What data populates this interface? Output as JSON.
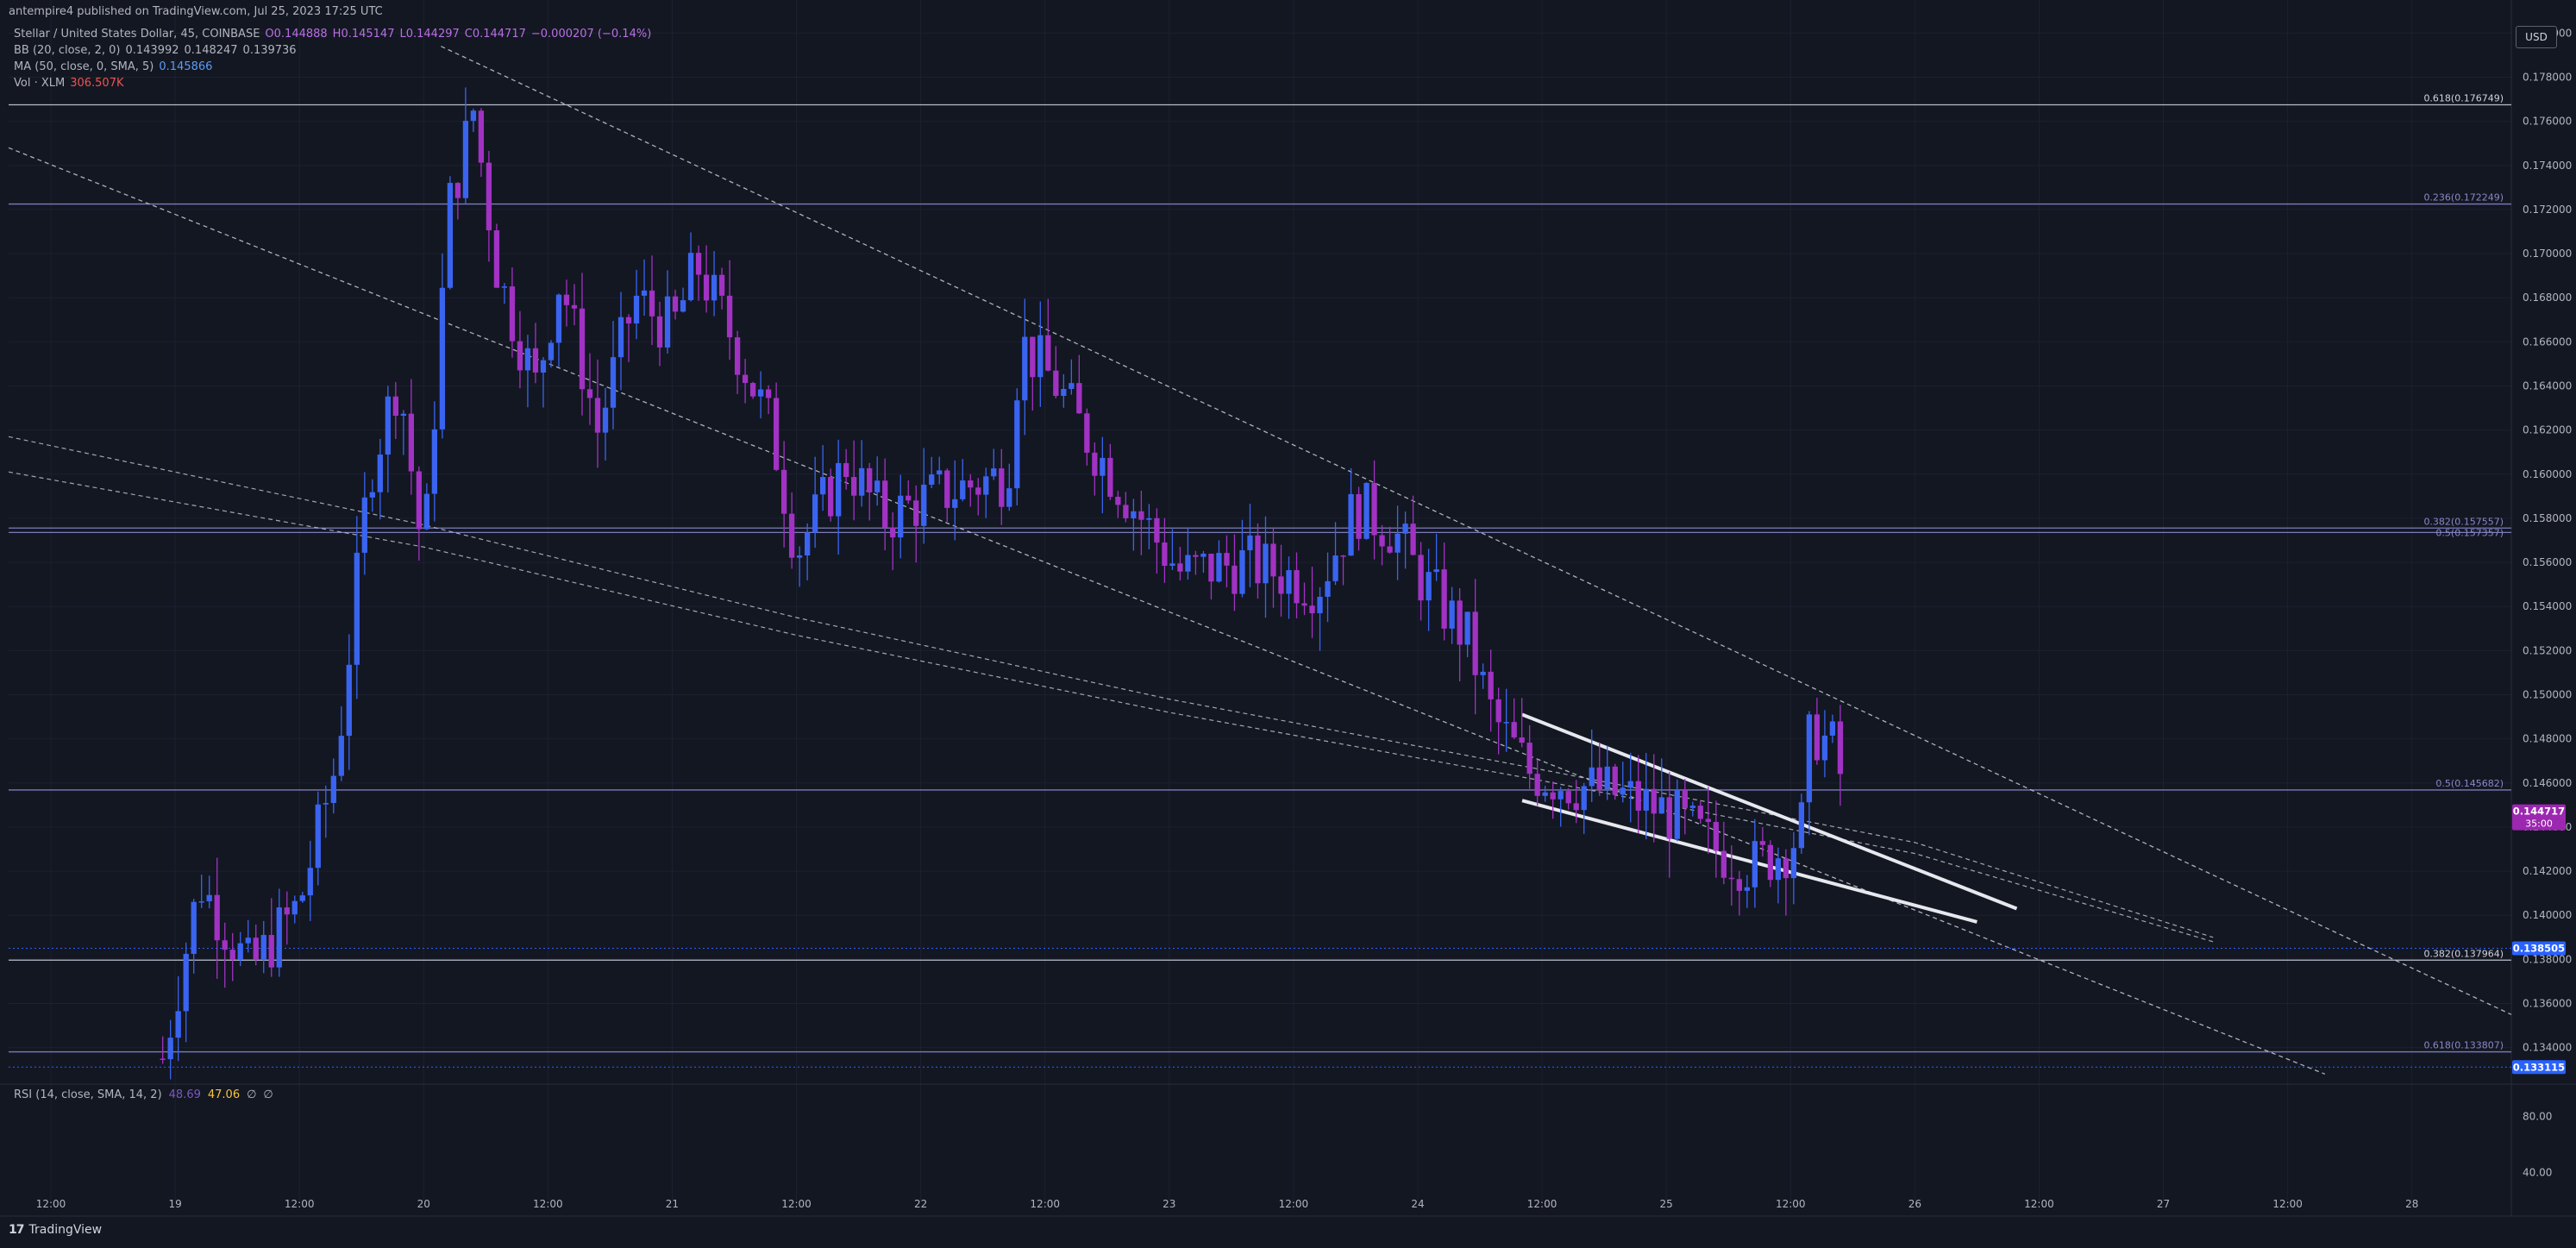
{
  "header": {
    "publisher": "antempire4 published on TradingView.com, Jul 25, 2023 17:25 UTC"
  },
  "legend": {
    "symbol": "Stellar / United States Dollar, 45, COINBASE",
    "ohlc": {
      "o": "O0.144888",
      "h": "H0.145147",
      "l": "L0.144297",
      "c": "C0.144717",
      "chg": "−0.000207 (−0.14%)"
    },
    "bb": {
      "label": "BB (20, close, 2, 0)",
      "v1": "0.143992",
      "v2": "0.148247",
      "v3": "0.139736"
    },
    "ma": {
      "label": "MA (50, close, 0, SMA, 5)",
      "v": "0.145866"
    },
    "vol": {
      "label": "Vol · XLM",
      "v": "306.507K"
    }
  },
  "rsi": {
    "label": "RSI (14, close, SMA, 14, 2)",
    "v1": "48.69",
    "v2": "47.06",
    "v3": "∅",
    "v4": "∅"
  },
  "usd_label": "USD",
  "footer": {
    "brand": "TradingView"
  },
  "colors": {
    "bg": "#131722",
    "bull": "#3a64f0",
    "bear": "#a132c3",
    "fib": "#7b7bb8",
    "grid": "#1e2230"
  },
  "chart_data": {
    "type": "candlestick",
    "ylim": [
      0.1325,
      0.1815
    ],
    "y_ticks": [
      0.134,
      0.136,
      0.138,
      0.14,
      0.142,
      0.144,
      0.146,
      0.148,
      0.15,
      0.152,
      0.154,
      0.156,
      0.158,
      0.16,
      0.162,
      0.164,
      0.166,
      0.168,
      0.17,
      0.172,
      0.174,
      0.176,
      0.178,
      0.18
    ],
    "y_tick_labels": [
      "0.134000",
      "0.136000",
      "0.138000",
      "0.140000",
      "0.142000",
      "0.144000",
      "0.146000",
      "0.148000",
      "0.150000",
      "0.152000",
      "0.154000",
      "0.156000",
      "0.158000",
      "0.160000",
      "0.162000",
      "0.164000",
      "0.166000",
      "0.168000",
      "0.170000",
      "0.172000",
      "0.174000",
      "0.176000",
      "0.178000",
      "0.180000"
    ],
    "x_labels": [
      "12:00",
      "19",
      "12:00",
      "20",
      "12:00",
      "21",
      "12:00",
      "22",
      "12:00",
      "23",
      "12:00",
      "24",
      "12:00",
      "25",
      "12:00",
      "26",
      "12:00",
      "27",
      "12:00",
      "28"
    ],
    "x_label_positions": [
      -0.5,
      0,
      0.5,
      1,
      1.5,
      2,
      2.5,
      3,
      3.5,
      4,
      4.5,
      5,
      5.5,
      6,
      6.5,
      7,
      7.5,
      8,
      8.5,
      9
    ],
    "x_range": [
      -0.67,
      9.4
    ],
    "fib_levels": [
      {
        "label": "0.618(0.176749)",
        "value": 0.176749
      },
      {
        "label": "0.236(0.172249)",
        "value": 0.172249
      },
      {
        "label": "0.382(0.157557)",
        "value": 0.157557
      },
      {
        "label": "0.5(0.157357)",
        "value": 0.157357
      },
      {
        "label": "0.5(0.145682)",
        "value": 0.145682
      },
      {
        "label": "0.382(0.137964)",
        "value": 0.137964
      },
      {
        "label": "0.618(0.133807)",
        "value": 0.133807
      }
    ],
    "price_tags": [
      {
        "label": "0.144717",
        "sub": "35:00",
        "value": 0.144717,
        "color": "#9c27b0"
      },
      {
        "label": "0.138505",
        "value": 0.138505,
        "color": "#2962ff"
      },
      {
        "label": "0.133115",
        "value": 0.133115,
        "color": "#2962ff"
      }
    ],
    "rsi_ticks": [
      {
        "label": "80.00",
        "value": 80
      },
      {
        "label": "40.00",
        "value": 40
      }
    ],
    "rsi_range": [
      20,
      100
    ],
    "trendlines": [
      {
        "x1": 1.07,
        "y1": 0.1794,
        "x2": 9.4,
        "y2": 0.1355,
        "style": "dashed"
      },
      {
        "x1": -0.67,
        "y1": 0.1748,
        "x2": 8.65,
        "y2": 0.1328,
        "style": "dashed"
      },
      {
        "x1": 5.42,
        "y1": 0.1491,
        "x2": 7.41,
        "y2": 0.1403,
        "style": "solid"
      },
      {
        "x1": 5.42,
        "y1": 0.1452,
        "x2": 7.25,
        "y2": 0.1397,
        "style": "solid"
      }
    ],
    "curves": [
      {
        "points": [
          [
            -0.67,
            0.1617
          ],
          [
            1,
            0.1577
          ],
          [
            2.5,
            0.1535
          ],
          [
            4,
            0.1498
          ],
          [
            5.5,
            0.1466
          ],
          [
            7,
            0.1433
          ],
          [
            8.2,
            0.139
          ]
        ]
      },
      {
        "points": [
          [
            -0.67,
            0.1601
          ],
          [
            1,
            0.1567
          ],
          [
            2.5,
            0.1527
          ],
          [
            4,
            0.1492
          ],
          [
            5.5,
            0.1461
          ],
          [
            7,
            0.1428
          ],
          [
            8.2,
            0.1388
          ]
        ]
      }
    ]
  }
}
